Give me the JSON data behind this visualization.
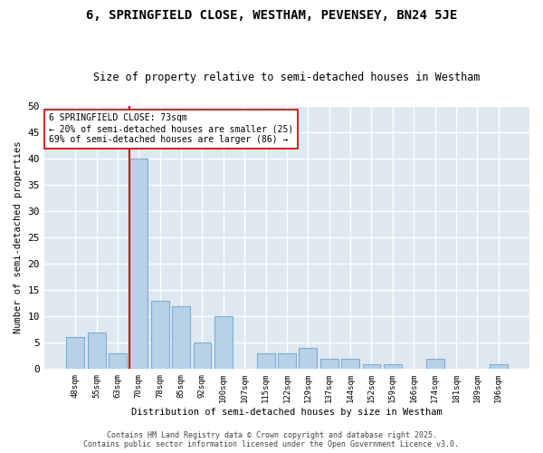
{
  "title1": "6, SPRINGFIELD CLOSE, WESTHAM, PEVENSEY, BN24 5JE",
  "title2": "Size of property relative to semi-detached houses in Westham",
  "xlabel": "Distribution of semi-detached houses by size in Westham",
  "ylabel": "Number of semi-detached properties",
  "categories": [
    "48sqm",
    "55sqm",
    "63sqm",
    "70sqm",
    "78sqm",
    "85sqm",
    "92sqm",
    "100sqm",
    "107sqm",
    "115sqm",
    "122sqm",
    "129sqm",
    "137sqm",
    "144sqm",
    "152sqm",
    "159sqm",
    "166sqm",
    "174sqm",
    "181sqm",
    "189sqm",
    "196sqm"
  ],
  "values": [
    6,
    7,
    3,
    40,
    13,
    12,
    5,
    10,
    0,
    3,
    3,
    4,
    2,
    2,
    1,
    1,
    0,
    2,
    0,
    0,
    1
  ],
  "bar_color": "#b8d0e8",
  "bar_edge_color": "#7aafd4",
  "vline_color": "#cc0000",
  "annotation_text": "6 SPRINGFIELD CLOSE: 73sqm\n← 20% of semi-detached houses are smaller (25)\n69% of semi-detached houses are larger (86) →",
  "annotation_box_facecolor": "#ffffff",
  "annotation_box_edgecolor": "#cc0000",
  "ylim": [
    0,
    50
  ],
  "yticks": [
    0,
    5,
    10,
    15,
    20,
    25,
    30,
    35,
    40,
    45,
    50
  ],
  "footer": "Contains HM Land Registry data © Crown copyright and database right 2025.\nContains public sector information licensed under the Open Government Licence v3.0.",
  "fig_bg_color": "#ffffff",
  "plot_bg_color": "#dde8f0",
  "grid_color": "#ffffff",
  "title1_fontsize": 10,
  "title2_fontsize": 8.5,
  "vline_bar_index": 3
}
